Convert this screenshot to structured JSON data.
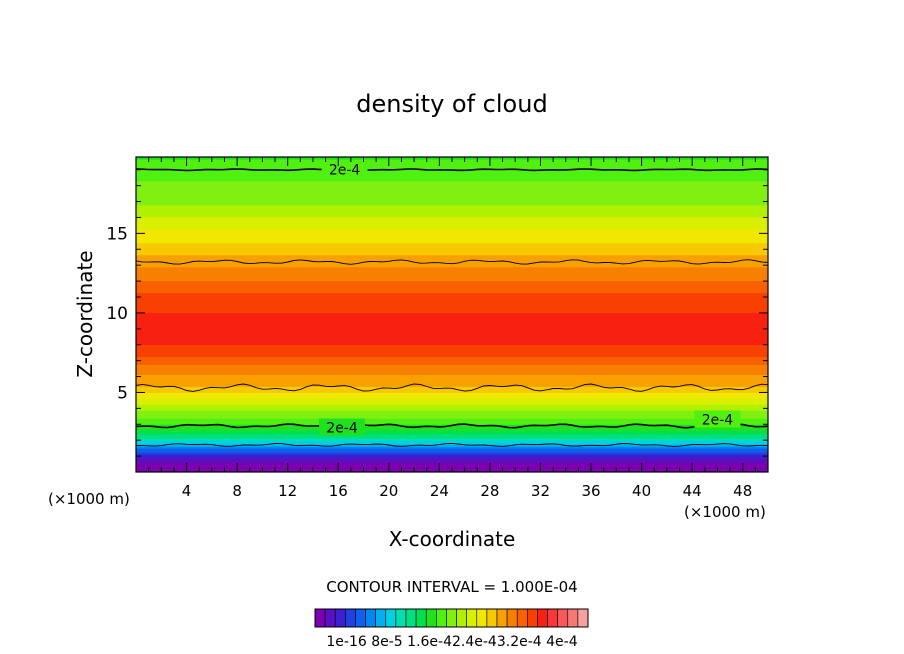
{
  "chart_data": {
    "type": "heatmap",
    "title": "density of cloud",
    "xlabel": "X-coordinate",
    "ylabel": "Z-coordinate",
    "x_unit_left": "(×1000 m)",
    "x_unit_right": "(×1000 m)",
    "xlim": [
      0,
      50
    ],
    "ylim": [
      0,
      19.8
    ],
    "xticks": [
      4,
      8,
      12,
      16,
      20,
      24,
      28,
      32,
      36,
      40,
      44,
      48
    ],
    "yticks": [
      5,
      10,
      15
    ],
    "contour_interval_label": "CONTOUR INTERVAL = 1.000E-04",
    "contour_labels": [
      {
        "text": "2e-4",
        "x": 16.5,
        "y": 19.0
      },
      {
        "text": "2e-4",
        "x": 16.3,
        "y": 2.8
      },
      {
        "text": "2e-4",
        "x": 46.0,
        "y": 3.3
      }
    ],
    "colorbar": {
      "tick_labels": [
        "1e-16",
        "8e-5",
        "1.6e-4",
        "2.4e-4",
        "3.2e-4",
        "4e-4"
      ],
      "tick_label_text": "1e-16 8e-5 1.6e-42.4e-43.2e-4 4e-4",
      "colors": [
        "#7a00b0",
        "#5a10c0",
        "#3c20d0",
        "#2040e0",
        "#1060f0",
        "#0088f0",
        "#00b0f0",
        "#00d0e0",
        "#00e0b0",
        "#00e080",
        "#00e050",
        "#20e020",
        "#50f010",
        "#80f010",
        "#b0f000",
        "#d8f000",
        "#f0e800",
        "#f8c800",
        "#f8a000",
        "#f88000",
        "#f86000",
        "#f84000",
        "#f82010",
        "#f83838",
        "#f85858",
        "#f87878",
        "#f8a0a0"
      ]
    },
    "profile_z": [
      0.0,
      0.5,
      1.0,
      1.5,
      2.0,
      2.5,
      3.0,
      3.5,
      4.0,
      4.5,
      5.0,
      5.5,
      6.0,
      6.5,
      7.0,
      8.0,
      9.0,
      10.0,
      11.0,
      12.0,
      13.0,
      13.5,
      14.0,
      14.5,
      15.0,
      15.5,
      16.0,
      16.5,
      17.0,
      17.5,
      18.0,
      18.5,
      19.0,
      19.8
    ],
    "profile_density": [
      0.0,
      1e-05,
      4e-05,
      8e-05,
      0.00013,
      0.00017,
      0.00019,
      0.00021,
      0.00023,
      0.00025,
      0.00027,
      0.00029,
      0.0003,
      0.00031,
      0.00033,
      0.00035,
      0.00036,
      0.00035,
      0.00034,
      0.00032,
      0.0003,
      0.00029,
      0.00028,
      0.00027,
      0.00026,
      0.00025,
      0.00024,
      0.00023,
      0.00022,
      0.000215,
      0.00021,
      0.000205,
      0.0002,
      0.00019
    ]
  }
}
